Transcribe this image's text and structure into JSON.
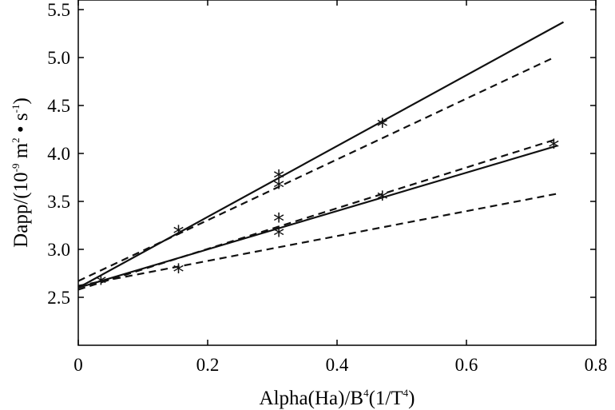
{
  "chart_data": {
    "type": "line",
    "xlabel": {
      "prefix": "Alpha(Ha)/B",
      "sup1": "4",
      "mid": "(1/T",
      "sup2": "4",
      "suffix": ")"
    },
    "ylabel": {
      "prefix": "Dapp/(10",
      "sup1": "-9",
      "mid1": " m",
      "sup2": "2",
      "mid2": " • s",
      "sup3": "-1",
      "suffix": ")"
    },
    "xlim": [
      0,
      0.8
    ],
    "ylim": [
      2.0,
      5.6
    ],
    "xticks": [
      0,
      0.2,
      0.4,
      0.6,
      0.8
    ],
    "xtick_labels": [
      "0",
      "0.2",
      "0.4",
      "0.6",
      "0.8"
    ],
    "yticks": [
      2.5,
      3.0,
      3.5,
      4.0,
      4.5,
      5.0,
      5.5
    ],
    "ytick_labels": [
      "2.5",
      "3.0",
      "3.5",
      "4.0",
      "4.5",
      "5.0",
      "5.5"
    ],
    "grid": false,
    "series": [
      {
        "style": "solid",
        "x": [
          0,
          0.75
        ],
        "y": [
          2.6,
          5.37
        ]
      },
      {
        "style": "dashed",
        "x": [
          0,
          0.735
        ],
        "y": [
          2.67,
          5.0
        ]
      },
      {
        "style": "solid",
        "x": [
          0,
          0.74
        ],
        "y": [
          2.6,
          4.08
        ]
      },
      {
        "style": "dashed",
        "x": [
          0,
          0.735
        ],
        "y": [
          2.58,
          4.14
        ]
      },
      {
        "style": "dashed",
        "x": [
          0,
          0.74
        ],
        "y": [
          2.62,
          3.58
        ]
      }
    ],
    "markers": {
      "symbol": "*",
      "points": [
        {
          "x": 0.035,
          "y": 2.67
        },
        {
          "x": 0.155,
          "y": 3.19
        },
        {
          "x": 0.155,
          "y": 2.79
        },
        {
          "x": 0.31,
          "y": 3.77
        },
        {
          "x": 0.31,
          "y": 3.67
        },
        {
          "x": 0.31,
          "y": 3.32
        },
        {
          "x": 0.31,
          "y": 3.17
        },
        {
          "x": 0.47,
          "y": 4.31
        },
        {
          "x": 0.47,
          "y": 3.55
        },
        {
          "x": 0.735,
          "y": 4.09
        }
      ]
    }
  }
}
